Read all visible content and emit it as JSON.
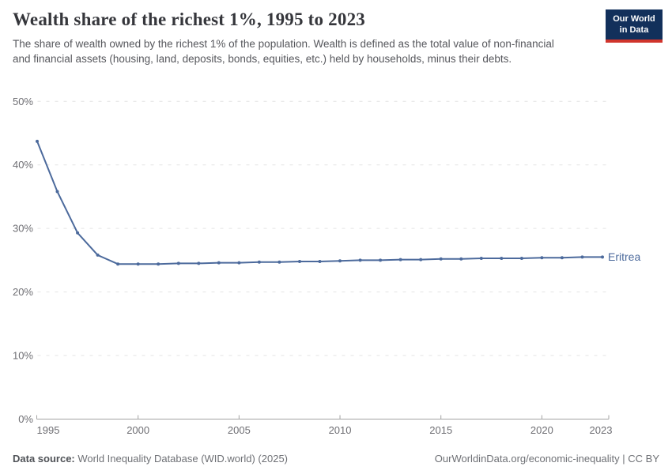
{
  "header": {
    "title": "Wealth share of the richest 1%, 1995 to 2023",
    "subtitle": "The share of wealth owned by the richest 1% of the population. Wealth is defined as the total value of non-financial and financial assets (housing, land, deposits, bonds, equities, etc.) held by households, minus their debts."
  },
  "logo": {
    "line1": "Our World",
    "line2": "in Data",
    "bg_color": "#12305B",
    "accent_color": "#D0342C"
  },
  "footer": {
    "source_label": "Data source:",
    "source_text": " World Inequality Database (WID.world) (2025)",
    "attribution": "OurWorldinData.org/economic-inequality | CC BY"
  },
  "chart_data": {
    "type": "line",
    "title": "Wealth share of the richest 1%, 1995 to 2023",
    "x": [
      1995,
      1996,
      1997,
      1998,
      1999,
      2000,
      2001,
      2002,
      2003,
      2004,
      2005,
      2006,
      2007,
      2008,
      2009,
      2010,
      2011,
      2012,
      2013,
      2014,
      2015,
      2016,
      2017,
      2018,
      2019,
      2020,
      2021,
      2022,
      2023
    ],
    "series": [
      {
        "name": "Eritrea",
        "color": "#4C6A9C",
        "values": [
          43.7,
          35.8,
          29.3,
          25.8,
          24.4,
          24.4,
          24.4,
          24.5,
          24.5,
          24.6,
          24.6,
          24.7,
          24.7,
          24.8,
          24.8,
          24.9,
          25.0,
          25.0,
          25.1,
          25.1,
          25.2,
          25.2,
          25.3,
          25.3,
          25.3,
          25.4,
          25.4,
          25.5,
          25.5
        ]
      }
    ],
    "xlabel": "",
    "ylabel": "",
    "ylim": [
      0,
      50
    ],
    "yticks": [
      0,
      10,
      20,
      30,
      40,
      50
    ],
    "ytick_suffix": "%",
    "xticks": [
      1995,
      2000,
      2005,
      2010,
      2015,
      2020,
      2023
    ],
    "grid": "horizontal-dashed",
    "legend_position": "end-of-line-label",
    "grid_color": "#e3e3e3",
    "axis_color": "#a3a3a3",
    "tick_label_color": "#6e6e73"
  }
}
